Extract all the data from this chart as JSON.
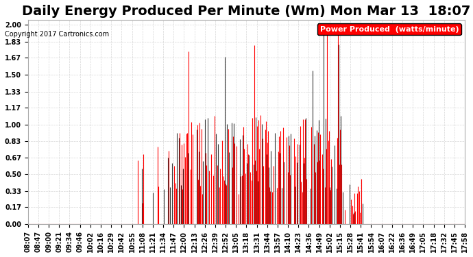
{
  "title": "Daily Energy Produced Per Minute (Wm) Mon Mar 13  18:07",
  "copyright": "Copyright 2017 Cartronics.com",
  "legend_label": "Power Produced  (watts/minute)",
  "ylabel_values": [
    0.0,
    0.17,
    0.33,
    0.5,
    0.67,
    0.83,
    1.0,
    1.17,
    1.33,
    1.5,
    1.67,
    1.83,
    2.0
  ],
  "ymin": 0.0,
  "ymax": 2.0,
  "x_tick_labels": [
    "08:07",
    "08:47",
    "09:00",
    "09:21",
    "09:34",
    "09:46",
    "10:02",
    "10:16",
    "10:29",
    "10:42",
    "10:55",
    "11:08",
    "11:21",
    "11:34",
    "11:47",
    "12:00",
    "12:13",
    "12:26",
    "12:39",
    "12:52",
    "13:05",
    "13:18",
    "13:31",
    "13:44",
    "13:57",
    "14:10",
    "14:23",
    "14:36",
    "14:49",
    "15:02",
    "15:15",
    "15:28",
    "15:41",
    "15:54",
    "16:07",
    "16:22",
    "16:36",
    "16:49",
    "17:05",
    "17:18",
    "17:32",
    "17:45",
    "17:58"
  ],
  "background_color": "#ffffff",
  "plot_bg_color": "#ffffff",
  "grid_color": "#cccccc",
  "bar_color_red": "#ff0000",
  "bar_color_dark": "#333333",
  "title_fontsize": 14,
  "axis_fontsize": 7,
  "legend_fontsize": 8
}
